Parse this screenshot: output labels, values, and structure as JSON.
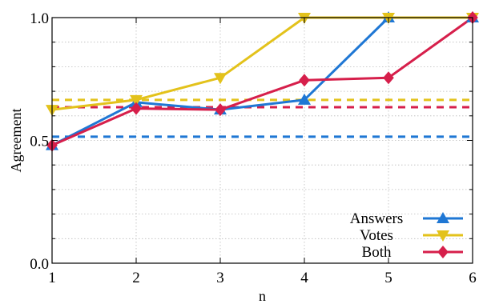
{
  "chart_data": {
    "type": "line",
    "xlabel": "n",
    "ylabel": "Agreement",
    "x": [
      1,
      2,
      3,
      4,
      5,
      6
    ],
    "xlim": [
      1,
      6
    ],
    "ylim": [
      0.0,
      1.0
    ],
    "x_ticks": [
      "1",
      "2",
      "3",
      "4",
      "5",
      "6"
    ],
    "y_ticks": [
      "0.0",
      "0.5",
      "1.0"
    ],
    "grid": true,
    "legend_position": "bottom-right",
    "series": [
      {
        "name": "Answers",
        "color": "#1f77d4",
        "marker": "triangle-up",
        "values": [
          0.48,
          0.655,
          0.625,
          0.665,
          1.0,
          1.0
        ]
      },
      {
        "name": "Votes",
        "color": "#e3c21b",
        "marker": "triangle-down",
        "values": [
          0.625,
          0.665,
          0.755,
          1.0,
          1.0,
          1.0
        ]
      },
      {
        "name": "Both",
        "color": "#d61f4b",
        "marker": "diamond",
        "values": [
          0.48,
          0.63,
          0.625,
          0.745,
          0.755,
          1.0
        ]
      }
    ],
    "baselines": [
      {
        "color": "#1f77d4",
        "value": 0.515
      },
      {
        "color": "#e3c21b",
        "value": 0.665
      },
      {
        "color": "#d61f4b",
        "value": 0.635
      }
    ]
  }
}
